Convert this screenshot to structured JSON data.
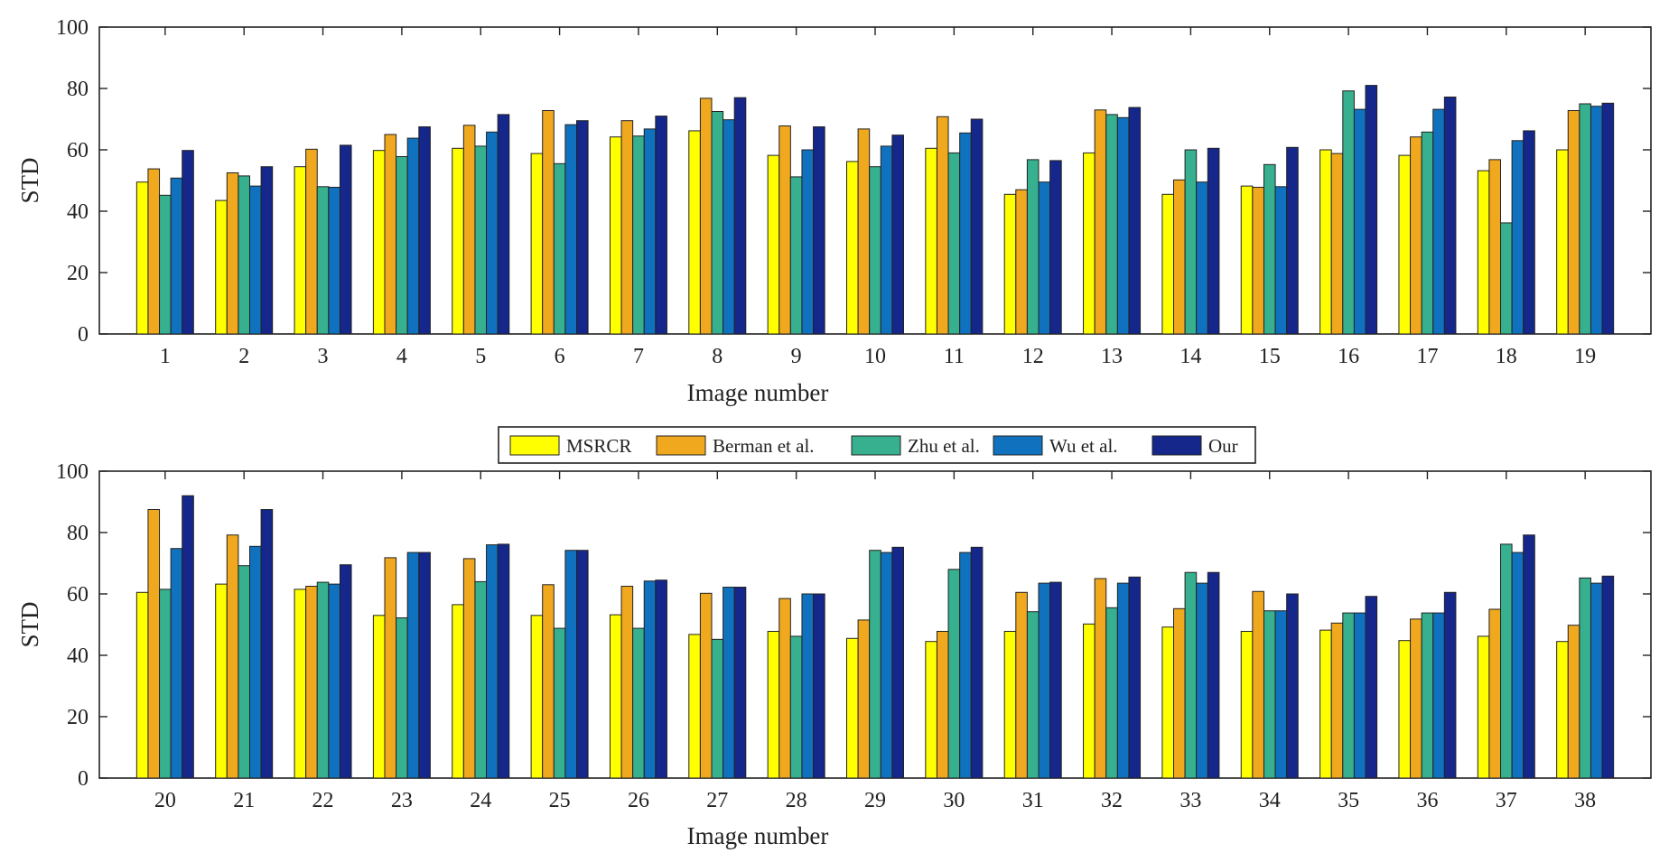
{
  "legend": {
    "entries": [
      {
        "label": "MSRCR",
        "color": "#ffff00"
      },
      {
        "label": "Berman et al.",
        "color": "#f0a81e"
      },
      {
        "label": "Zhu et al.",
        "color": "#36b08e"
      },
      {
        "label": "Wu et al.",
        "color": "#1072be"
      },
      {
        "label": "Our",
        "color": "#15278a"
      }
    ],
    "placement": "between-charts-center"
  },
  "chart_data": [
    {
      "type": "bar",
      "xlabel": "Image number",
      "ylabel": "STD",
      "ylim": [
        0,
        100
      ],
      "yticks": [
        0,
        20,
        40,
        60,
        80,
        100
      ],
      "grid": false,
      "categories": [
        "1",
        "2",
        "3",
        "4",
        "5",
        "6",
        "7",
        "8",
        "9",
        "10",
        "11",
        "12",
        "13",
        "14",
        "15",
        "16",
        "17",
        "18",
        "19"
      ],
      "series": [
        {
          "name": "MSRCR",
          "values": [
            49.5,
            43.5,
            54.5,
            59.8,
            60.5,
            58.8,
            64.2,
            66.2,
            58.2,
            56.2,
            60.5,
            45.5,
            59.0,
            45.5,
            48.2,
            60.0,
            58.2,
            53.2,
            60.0
          ]
        },
        {
          "name": "Berman et al.",
          "values": [
            53.8,
            52.5,
            60.2,
            65.0,
            68.0,
            72.8,
            69.5,
            76.8,
            67.8,
            66.8,
            70.8,
            47.0,
            73.0,
            50.2,
            47.8,
            58.8,
            64.2,
            56.8,
            72.8
          ]
        },
        {
          "name": "Zhu et al.",
          "values": [
            45.2,
            51.5,
            48.0,
            57.8,
            61.2,
            55.5,
            64.5,
            72.5,
            51.2,
            54.5,
            59.0,
            56.8,
            71.5,
            60.0,
            55.2,
            79.2,
            65.8,
            36.2,
            75.0
          ]
        },
        {
          "name": "Wu et al.",
          "values": [
            50.8,
            48.2,
            47.8,
            63.8,
            65.8,
            68.2,
            66.8,
            69.8,
            60.0,
            61.2,
            65.5,
            49.5,
            70.5,
            49.5,
            48.0,
            73.2,
            73.2,
            63.0,
            74.2
          ]
        },
        {
          "name": "Our",
          "values": [
            59.8,
            54.5,
            61.5,
            67.5,
            71.5,
            69.5,
            71.0,
            77.0,
            67.5,
            64.8,
            70.0,
            56.5,
            73.8,
            60.5,
            60.8,
            81.0,
            77.2,
            66.2,
            75.2
          ]
        }
      ]
    },
    {
      "type": "bar",
      "xlabel": "Image number",
      "ylabel": "STD",
      "ylim": [
        0,
        100
      ],
      "yticks": [
        0,
        20,
        40,
        60,
        80,
        100
      ],
      "grid": false,
      "categories": [
        "20",
        "21",
        "22",
        "23",
        "24",
        "25",
        "26",
        "27",
        "28",
        "29",
        "30",
        "31",
        "32",
        "33",
        "34",
        "35",
        "36",
        "37",
        "38"
      ],
      "series": [
        {
          "name": "MSRCR",
          "values": [
            60.5,
            63.2,
            61.5,
            53.0,
            56.5,
            53.0,
            53.2,
            46.8,
            47.8,
            45.5,
            44.5,
            47.8,
            50.2,
            49.2,
            47.8,
            48.2,
            44.8,
            46.2,
            44.5
          ]
        },
        {
          "name": "Berman et al.",
          "values": [
            87.5,
            79.2,
            62.5,
            71.8,
            71.5,
            63.0,
            62.5,
            60.2,
            58.5,
            51.5,
            47.8,
            60.5,
            65.0,
            55.2,
            60.8,
            50.5,
            51.8,
            55.0,
            49.8
          ]
        },
        {
          "name": "Zhu et al.",
          "values": [
            61.5,
            69.2,
            63.8,
            52.2,
            64.0,
            48.8,
            48.8,
            45.2,
            46.2,
            74.2,
            68.0,
            54.2,
            55.5,
            67.0,
            54.5,
            53.8,
            53.8,
            76.2,
            65.2
          ]
        },
        {
          "name": "Wu et al.",
          "values": [
            74.8,
            75.5,
            63.2,
            73.5,
            76.0,
            74.2,
            64.2,
            62.2,
            60.0,
            73.5,
            73.5,
            63.5,
            63.5,
            63.5,
            54.5,
            53.8,
            53.8,
            73.5,
            63.5
          ]
        },
        {
          "name": "Our",
          "values": [
            92.0,
            87.5,
            69.5,
            73.5,
            76.2,
            74.2,
            64.5,
            62.2,
            60.0,
            75.2,
            75.2,
            63.8,
            65.5,
            67.0,
            60.0,
            59.2,
            60.5,
            79.2,
            65.8
          ]
        }
      ]
    }
  ]
}
